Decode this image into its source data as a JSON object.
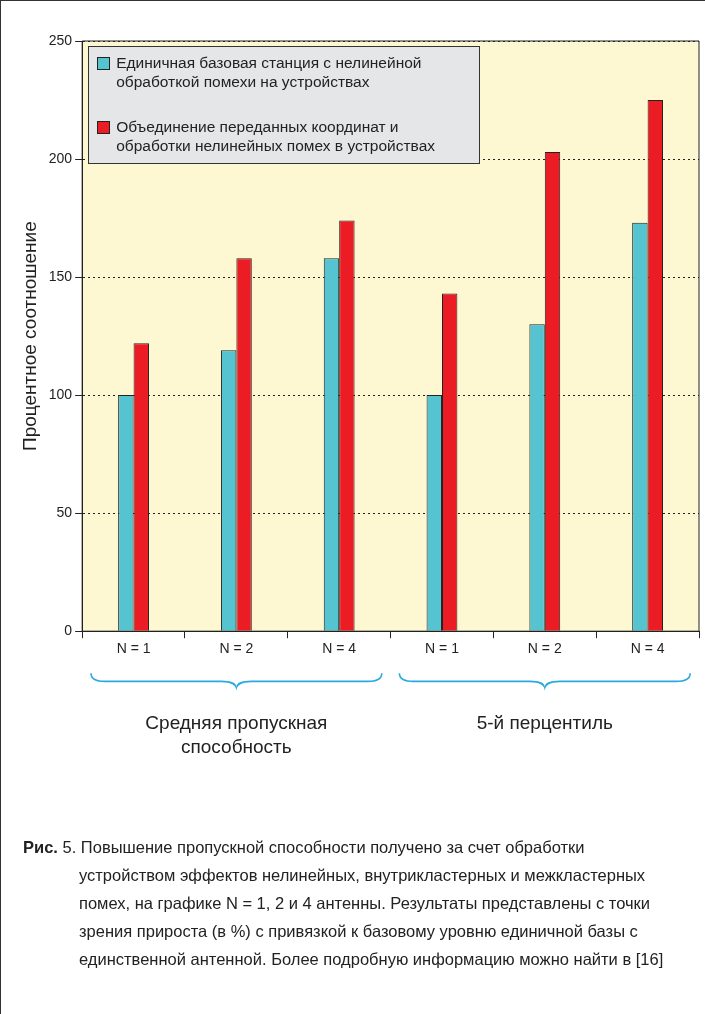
{
  "chart_data": {
    "type": "bar",
    "ylabel": "Процентное соотношение",
    "categories": [
      "N = 1",
      "N = 2",
      "N = 4",
      "N = 1",
      "N = 2",
      "N = 4"
    ],
    "series": [
      {
        "name": "Единичная базовая станция с нелинейной обработкой помехи на устройствах",
        "color": "#56c4d0",
        "values": [
          100,
          119,
          158,
          100,
          130,
          173
        ]
      },
      {
        "name": "Объединение переданных координат и обработки нелинейных помех в устройствах",
        "color": "#ec1c24",
        "values": [
          122,
          158,
          174,
          143,
          203,
          225
        ]
      }
    ],
    "ylim": [
      0,
      250
    ],
    "yticks": [
      0,
      50,
      100,
      150,
      200,
      250
    ],
    "grid": "y",
    "legend": "top left",
    "annotations": [
      "Средняя пропускная способность",
      "5-й перцентиль",
      "Рис. 5. Повышение пропускной способности получено за счет обработки устройством эффектов нелинейных, внутрикластерных и межкластерных помех, на графике N = 1, 2 и 4 антенны. Результаты представлены с точки зрения прироста (в %) с привязкой к базовому уровню единичной базы с единственной антенной. Более подробную информацию можно найти в [16]"
    ]
  }
}
